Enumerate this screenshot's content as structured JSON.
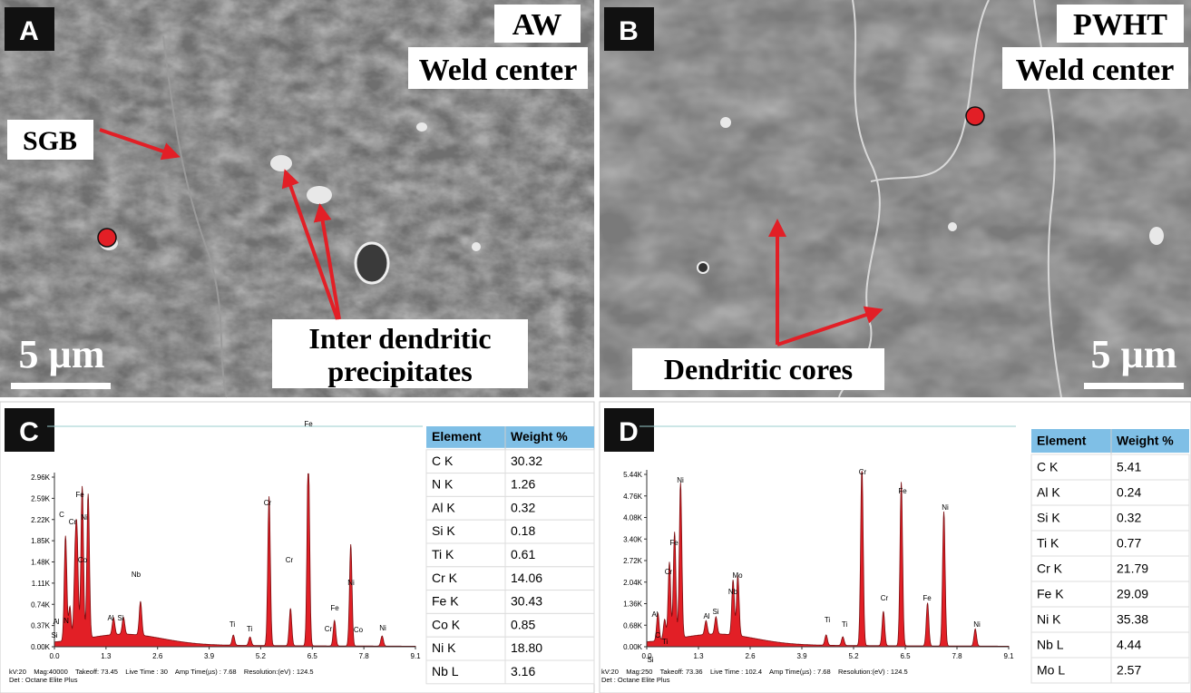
{
  "panels": {
    "a": {
      "label": "A",
      "title": [
        "AW",
        "Weld center"
      ],
      "annotations": [
        "SGB",
        "Inter dendritic",
        "precipitates"
      ],
      "scale": "5 µm"
    },
    "b": {
      "label": "B",
      "title": [
        "PWHT",
        "Weld center"
      ],
      "annotations": [
        "Dendritic cores"
      ],
      "scale": "5 µm"
    },
    "c": {
      "label": "C",
      "yticks": [
        "0.00K",
        "0.37K",
        "0.74K",
        "1.11K",
        "1.48K",
        "1.85K",
        "2.22K",
        "2.59K",
        "2.96K"
      ],
      "xticks": [
        "0.0",
        "1.3",
        "2.6",
        "3.9",
        "5.2",
        "6.5",
        "7.8",
        "9.1"
      ],
      "peaks": [
        "Si",
        "Al",
        "N",
        "C",
        "Cr",
        "Fe",
        "Ni",
        "Co",
        "Al",
        "Si",
        "Nb",
        "Ti",
        "Ti",
        "Cr",
        "Fe",
        "Cr",
        "Cr",
        "Fe",
        "Co",
        "Ni",
        "Ni"
      ],
      "table": {
        "header": [
          "Element",
          "Weight %"
        ],
        "rows": [
          [
            "C K",
            "30.32"
          ],
          [
            "N K",
            "1.26"
          ],
          [
            "Al K",
            "0.32"
          ],
          [
            "Si K",
            "0.18"
          ],
          [
            "Ti K",
            "0.61"
          ],
          [
            "Cr K",
            "14.06"
          ],
          [
            "Fe K",
            "30.43"
          ],
          [
            "Co K",
            "0.85"
          ],
          [
            "Ni K",
            "18.80"
          ],
          [
            "Nb L",
            "3.16"
          ]
        ]
      },
      "info": [
        "kV:20    Mag:40000    Takeoff: 73.45    Live Time : 30    Amp Time(µs) : 7.68    Resolution:(eV) : 124.5",
        "Det : Octane Elite Plus"
      ]
    },
    "d": {
      "label": "D",
      "yticks": [
        "0.00K",
        "0.68K",
        "1.36K",
        "2.04K",
        "2.72K",
        "3.40K",
        "4.08K",
        "4.76K",
        "5.44K"
      ],
      "xticks": [
        "0.0",
        "1.3",
        "2.6",
        "3.9",
        "5.2",
        "6.5",
        "7.8",
        "9.1"
      ],
      "peaks": [
        "Si",
        "C",
        "Ti",
        "Al",
        "Cr",
        "Fe",
        "Ni",
        "Al",
        "Si",
        "Nb",
        "Mo",
        "Ti",
        "Ti",
        "Cr",
        "Cr",
        "Fe",
        "Fe",
        "Ni",
        "Ni"
      ],
      "table": {
        "header": [
          "Element",
          "Weight %"
        ],
        "rows": [
          [
            "C K",
            "5.41"
          ],
          [
            "Al K",
            "0.24"
          ],
          [
            "Si K",
            "0.32"
          ],
          [
            "Ti K",
            "0.77"
          ],
          [
            "Cr K",
            "21.79"
          ],
          [
            "Fe K",
            "29.09"
          ],
          [
            "Ni K",
            "35.38"
          ],
          [
            "Nb L",
            "4.44"
          ],
          [
            "Mo L",
            "2.57"
          ]
        ]
      },
      "info": [
        "kV:20    Mag:250    Takeoff: 73.36    Live Time : 102.4    Amp Time(µs) : 7.68    Resolution:(eV) : 124.5",
        "Det : Octane Elite Plus"
      ]
    }
  }
}
